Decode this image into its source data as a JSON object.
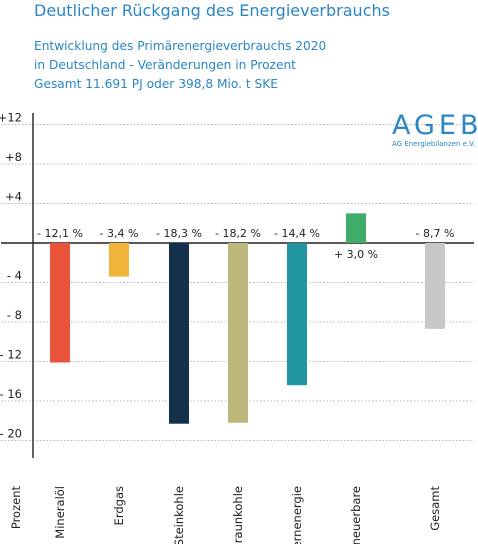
{
  "title": "Deutlicher Rückgang des Energieverbrauchs",
  "subtitle_lines": [
    "Entwicklung des Primärenergieverbrauchs 2020",
    "in Deutschland - Veränderungen in Prozent",
    "Gesamt 11.691 PJ oder 398,8 Mio. t SKE"
  ],
  "logo": {
    "name": "AGEB",
    "subtitle": "AG Energiebilanzen e.V."
  },
  "colors": {
    "text": "#2a86c4"
  },
  "chart_data": {
    "type": "bar",
    "ylabel": "Prozent",
    "ylim": [
      -22,
      14
    ],
    "yticks": [
      12,
      8,
      4,
      -4,
      -8,
      -12,
      -16,
      -20
    ],
    "ytick_labels": [
      "+12",
      "+8",
      "+4",
      "- 4",
      "- 8",
      "- 12",
      "- 16",
      "- 20"
    ],
    "grid": true,
    "categories": [
      "Mineralöl",
      "Erdgas",
      "Steinkohle",
      "Braunkohle",
      "Kernenergie",
      "Erneuerbare",
      "Gesamt"
    ],
    "values": [
      -12.1,
      -3.4,
      -18.3,
      -18.2,
      -14.4,
      3.0,
      -8.7
    ],
    "value_labels": [
      "- 12,1 %",
      "- 3,4 %",
      "- 18,3 %",
      "- 18,2 %",
      "- 14,4 %",
      "+ 3,0 %",
      "- 8,7 %"
    ],
    "bar_colors": [
      "#e8533a",
      "#f0b43a",
      "#15304a",
      "#bcb87c",
      "#2196a2",
      "#3fac69",
      "#c8c8c8"
    ]
  }
}
